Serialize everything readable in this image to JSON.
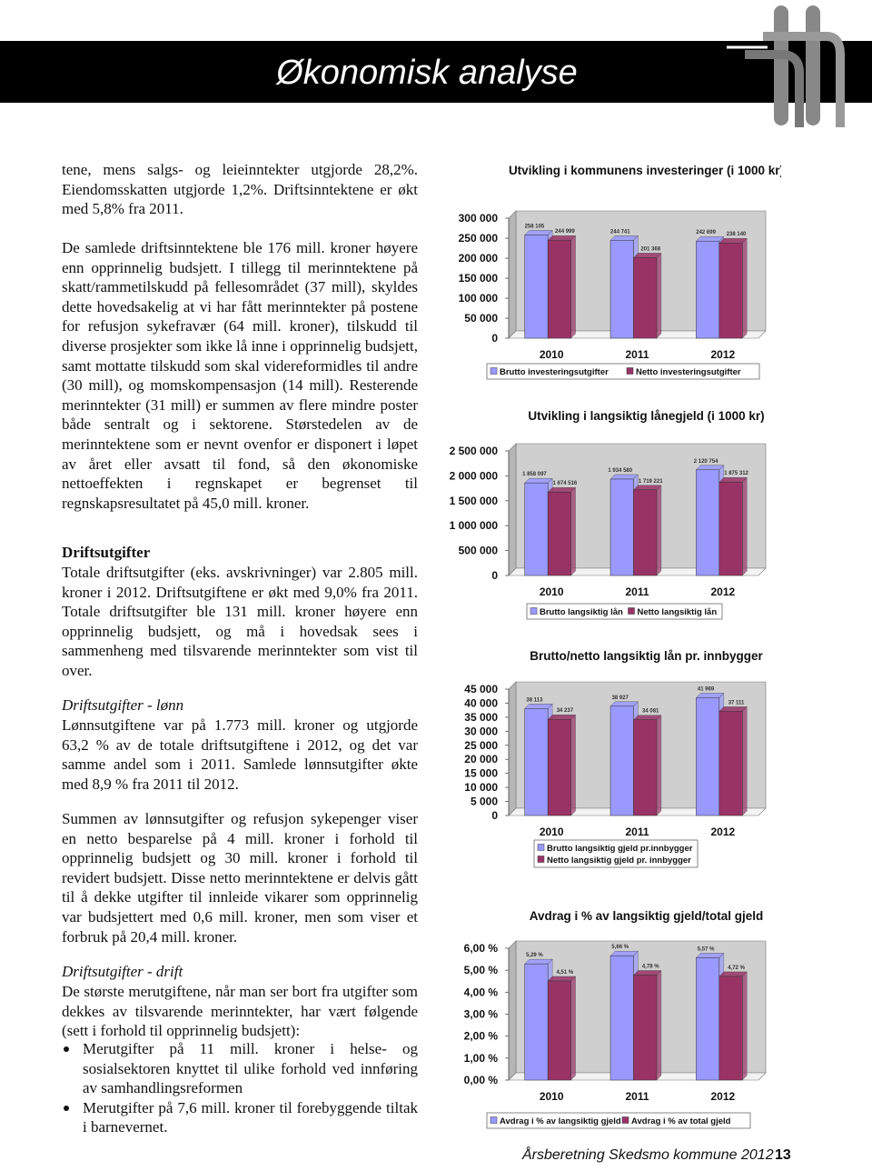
{
  "header": {
    "title": "Økonomisk analyse"
  },
  "body": {
    "intro": "tene, mens salgs- og leieinntekter utgjorde 28,2%. Eiendomsskatten utgjorde 1,2%. Driftsinntektene er økt med 5,8% fra 2011.",
    "income": "De samlede driftsinntektene ble 176 mill. kroner høyere enn opprinnelig budsjett. I tillegg til merinntektene på skatt/rammetilskudd på fellesområdet (37 mill), skyldes dette hovedsakelig at vi har fått merinntekter på postene for refusjon sykefravær (64 mill. kroner), tilskudd til diverse prosjekter som ikke lå inne i opprinnelig budsjett, samt mottatte tilskudd som skal videreformidles til andre (30 mill), og momskompensasjon (14 mill). Resterende merinntekter (31 mill) er summen av flere mindre poster både sentralt og i sektorene. Størstedelen av de merinntektene som er nevnt ovenfor er disponert i løpet av året eller avsatt til fond, så den økonomiske nettoeffekten i regnskapet er begrenset til regnskapsresultatet på 45,0 mill. kroner.",
    "costs_heading": "Driftsutgifter",
    "costs": "Totale driftsutgifter (eks. avskrivninger) var 2.805 mill. kroner i 2012. Driftsutgiftene er økt med 9,0% fra 2011. Totale driftsutgifter ble 131 mill. kroner høyere enn opprinnelig budsjett, og må i hovedsak sees i sammenheng med tilsvarende merinntekter som vist til over.",
    "wages_heading": "Driftsutgifter - lønn",
    "wages": "Lønnsutgiftene var på 1.773 mill. kroner og utgjorde 63,2 % av de totale driftsutgiftene i 2012, og det var samme andel som i 2011. Samlede lønnsutgifter økte med 8,9 % fra 2011 til 2012.",
    "wages_net": "Summen av lønnsutgifter og refusjon sykepenger viser en netto besparelse på 4 mill. kroner i forhold til opprinnelig budsjett og 30 mill. kroner i forhold til revidert budsjett. Disse netto merinntektene er delvis gått til å dekke utgifter til innleide vikarer som opprinnelig var budsjettert med 0,6 mill. kroner, men som viser et forbruk på 20,4 mill. kroner.",
    "operations_heading": "Driftsutgifter - drift",
    "operations": "De største merutgiftene, når man ser bort fra utgifter som dekkes av tilsvarende merinntekter, har vært følgende (sett i forhold til opprinnelig budsjett):",
    "bullets": [
      "Merutgifter på 11 mill. kroner i helse- og sosialsektoren knyttet til ulike forhold ved innføring av samhandlingsreformen",
      "Merutgifter på 7,6 mill. kroner til forebyggende tiltak i barnevernet."
    ]
  },
  "chart_data": [
    {
      "type": "bar",
      "title": "Utvikling i kommunens investeringer (i 1000 kr)",
      "categories": [
        "2010",
        "2011",
        "2012"
      ],
      "series": [
        {
          "name": "Brutto investeringsutgifter",
          "color": "#9999ff",
          "values": [
            258105,
            244741,
            242699
          ],
          "value_labels": [
            "258 105",
            "244 741",
            "242 699"
          ]
        },
        {
          "name": "Netto investeringsutgifter",
          "color": "#993366",
          "values": [
            244999,
            201368,
            238140
          ],
          "value_labels": [
            "244 999",
            "201 368",
            "238 140"
          ]
        }
      ],
      "ylim": [
        0,
        300000
      ],
      "yticks": [
        0,
        {
          "value": 50000,
          "label": "50 000"
        },
        {
          "value": 100000,
          "label": "100 000"
        },
        {
          "value": 150000,
          "label": "150 000"
        },
        {
          "value": 200000,
          "label": "200 000"
        },
        {
          "value": 250000,
          "label": "250 000"
        },
        {
          "value": 300000,
          "label": "300 000"
        }
      ],
      "legend": "bottom"
    },
    {
      "type": "bar",
      "title": "Utvikling i langsiktig lånegjeld (i 1000 kr)",
      "categories": [
        "2010",
        "2011",
        "2012"
      ],
      "series": [
        {
          "name": "Brutto langsiktig lån",
          "color": "#9999ff",
          "values": [
            1858097,
            1934580,
            2120754
          ],
          "value_labels": [
            "1 858 097",
            "1 934 580",
            "2 120 754"
          ]
        },
        {
          "name": "Netto langsiktig lån",
          "color": "#993366",
          "values": [
            1674516,
            1719221,
            1875312
          ],
          "value_labels": [
            "1 674 516",
            "1 719 221",
            "1 875 312"
          ]
        }
      ],
      "ylim": [
        0,
        2500000
      ],
      "yticks": [
        0,
        {
          "value": 500000,
          "label": "500 000"
        },
        {
          "value": 1000000,
          "label": "1 000 000"
        },
        {
          "value": 1500000,
          "label": "1 500 000"
        },
        {
          "value": 2000000,
          "label": "2 000 000"
        },
        {
          "value": 2500000,
          "label": "2 500 000"
        }
      ],
      "legend": "bottom"
    },
    {
      "type": "bar",
      "title": "Brutto/netto langsiktig lån pr. innbygger",
      "categories": [
        "2010",
        "2011",
        "2012"
      ],
      "series": [
        {
          "name": "Brutto langsiktig gjeld pr.innbygger",
          "color": "#9999ff",
          "values": [
            38113,
            38927,
            41969
          ],
          "value_labels": [
            "38 113",
            "38 927",
            "41 969"
          ]
        },
        {
          "name": "Netto langsiktig gjeld pr. innbygger",
          "color": "#993366",
          "values": [
            34237,
            34081,
            37111
          ],
          "value_labels": [
            "34 237",
            "34 081",
            "37 111"
          ]
        }
      ],
      "ylim": [
        0,
        45000
      ],
      "yticks": [
        0,
        {
          "value": 5000,
          "label": "5 000"
        },
        {
          "value": 10000,
          "label": "10 000"
        },
        {
          "value": 15000,
          "label": "15 000"
        },
        {
          "value": 20000,
          "label": "20 000"
        },
        {
          "value": 25000,
          "label": "25 000"
        },
        {
          "value": 30000,
          "label": "30 000"
        },
        {
          "value": 35000,
          "label": "35 000"
        },
        {
          "value": 40000,
          "label": "40 000"
        },
        {
          "value": 45000,
          "label": "45 000"
        }
      ],
      "legend": "bottom"
    },
    {
      "type": "bar",
      "title": "Avdrag i % av langsiktig gjeld/total gjeld",
      "categories": [
        "2010",
        "2011",
        "2012"
      ],
      "series": [
        {
          "name": "Avdrag i % av langsiktig gjeld",
          "color": "#9999ff",
          "values": [
            5.29,
            5.66,
            5.57
          ],
          "value_labels": [
            "5,29 %",
            "5,66 %",
            "5,57 %"
          ]
        },
        {
          "name": "Avdrag i % av total gjeld",
          "color": "#993366",
          "values": [
            4.51,
            4.78,
            4.72
          ],
          "value_labels": [
            "4,51 %",
            "4,78 %",
            "4,72 %"
          ]
        }
      ],
      "ylim": [
        0,
        6
      ],
      "yticks": [
        {
          "value": 0,
          "label": "0,00 %"
        },
        {
          "value": 1,
          "label": "1,00 %"
        },
        {
          "value": 2,
          "label": "2,00 %"
        },
        {
          "value": 3,
          "label": "3,00 %"
        },
        {
          "value": 4,
          "label": "4,00 %"
        },
        {
          "value": 5,
          "label": "5,00 %"
        },
        {
          "value": 6,
          "label": "6,00 %"
        }
      ],
      "legend": "bottom"
    }
  ],
  "footer": {
    "text": "Årsberetning Skedsmo kommune 2012",
    "page": "13"
  }
}
